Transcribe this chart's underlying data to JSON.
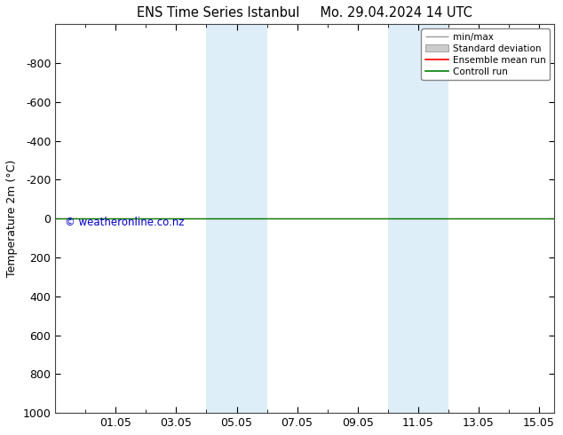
{
  "title": "ENS Time Series Istanbul     Mo. 29.04.2024 14 UTC",
  "ylabel": "Temperature 2m (°C)",
  "watermark": "© weatheronline.co.nz",
  "watermark_color": "#0000cc",
  "x_ticks_labels": [
    "01.05",
    "03.05",
    "05.05",
    "07.05",
    "09.05",
    "11.05",
    "13.05",
    "15.05"
  ],
  "x_ticks_positions": [
    2,
    4,
    6,
    8,
    10,
    12,
    14,
    16
  ],
  "xlim": [
    0,
    16.5
  ],
  "ylim": [
    -1000,
    1000
  ],
  "y_ticks": [
    -800,
    -600,
    -400,
    -200,
    0,
    200,
    400,
    600,
    800,
    1000
  ],
  "background_color": "#ffffff",
  "shaded_bands": [
    {
      "x_start": 5.0,
      "x_end": 6.0,
      "color": "#ddeef8"
    },
    {
      "x_start": 6.0,
      "x_end": 7.0,
      "color": "#ddeef8"
    },
    {
      "x_start": 11.0,
      "x_end": 12.0,
      "color": "#ddeef8"
    },
    {
      "x_start": 12.0,
      "x_end": 13.0,
      "color": "#ddeef8"
    }
  ],
  "control_run_color": "#008000",
  "ensemble_mean_color": "#ff0000",
  "std_dev_color": "#cccccc",
  "minmax_color": "#999999",
  "legend_items": [
    "min/max",
    "Standard deviation",
    "Ensemble mean run",
    "Controll run"
  ],
  "legend_colors": [
    "#999999",
    "#cccccc",
    "#ff0000",
    "#008000"
  ],
  "font_size": 9,
  "title_font_size": 10.5
}
